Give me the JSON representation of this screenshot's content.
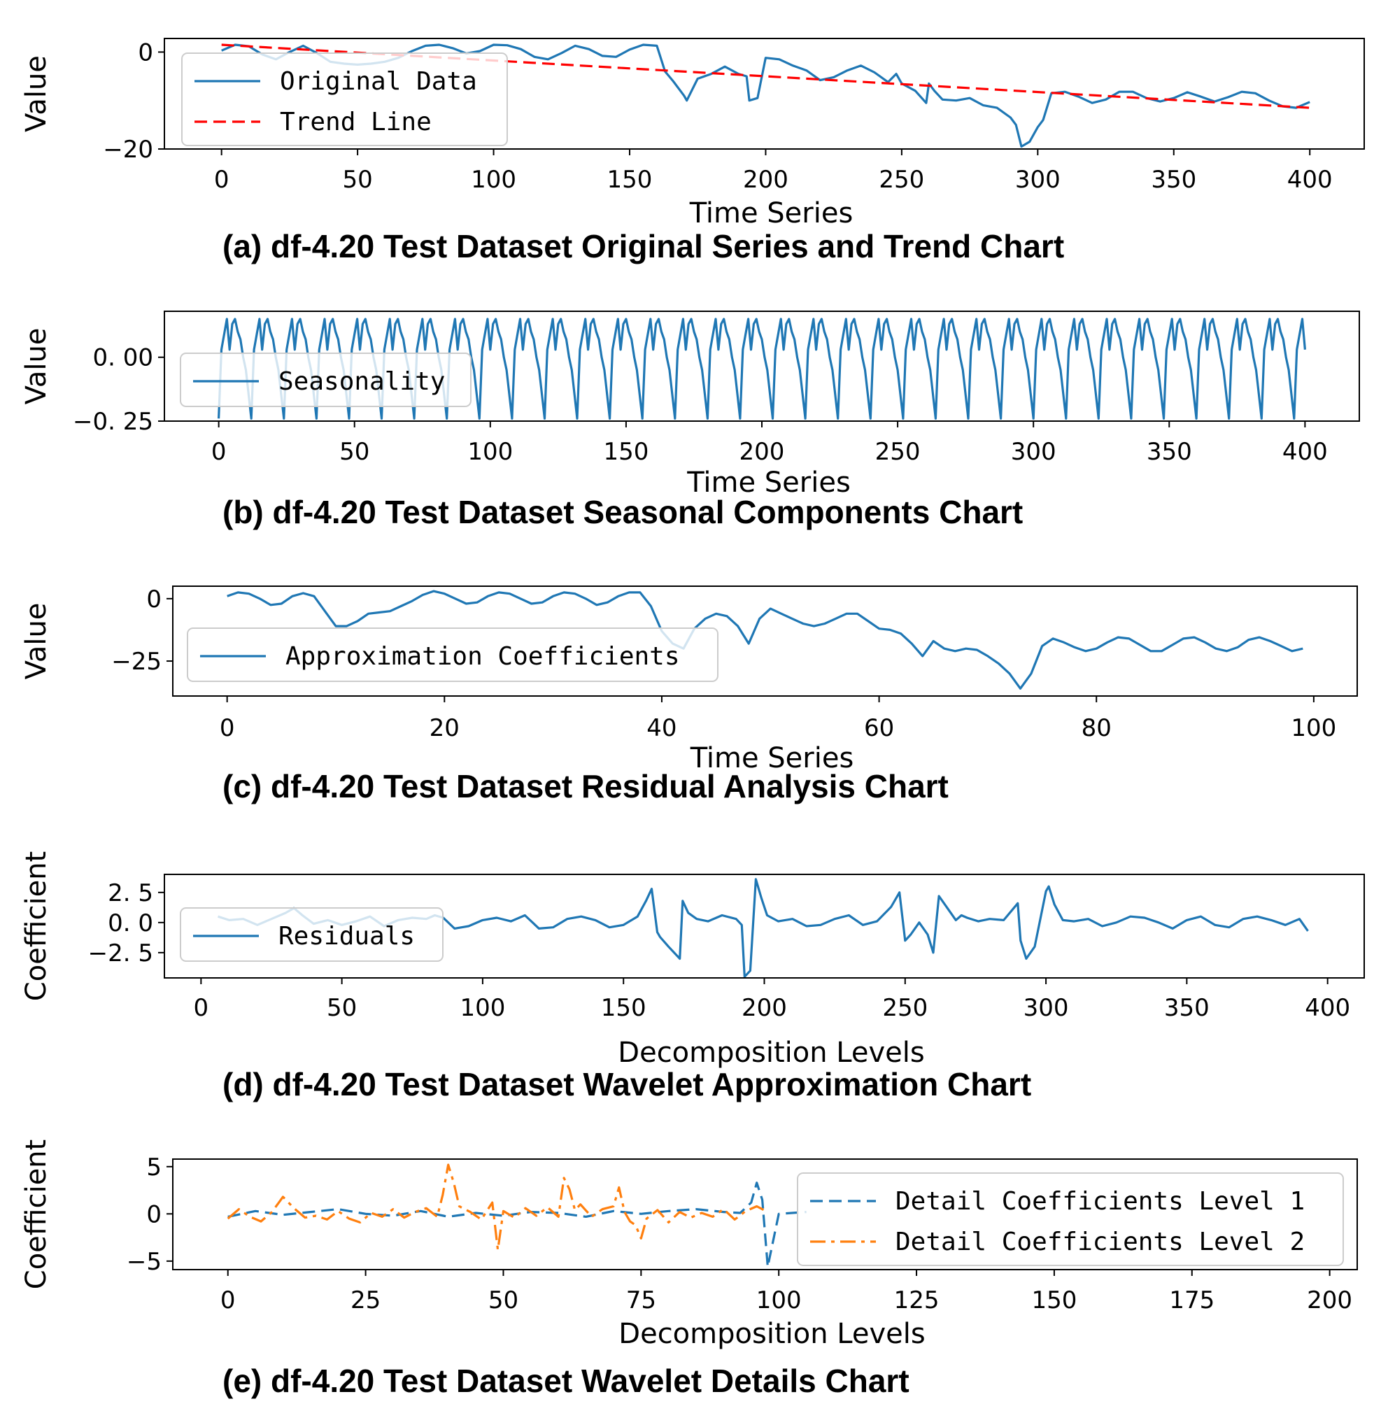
{
  "colors": {
    "blue": "#1f77b4",
    "red": "#ff0000",
    "orange": "#ff7f0e"
  },
  "chart_data": [
    {
      "id": "a",
      "type": "line",
      "caption": "(a)  df-4.20 Test Dataset Original Series and Trend Chart",
      "xlabel": "Time Series",
      "ylabel": "Value",
      "xlim": [
        -21,
        420
      ],
      "ylim": [
        -20,
        2.8
      ],
      "xticks": [
        0,
        50,
        100,
        150,
        200,
        250,
        300,
        350,
        400
      ],
      "yticks": [
        {
          "v": 0,
          "label": "0"
        },
        {
          "v": -20,
          "label": "−20"
        }
      ],
      "legend": "top-left",
      "series": [
        {
          "name": "Original Data",
          "style": "solid",
          "color": "#1f77b4",
          "x": [
            0,
            5,
            10,
            15,
            20,
            25,
            30,
            35,
            40,
            45,
            50,
            55,
            60,
            65,
            70,
            75,
            80,
            85,
            90,
            95,
            100,
            105,
            110,
            115,
            120,
            125,
            130,
            135,
            140,
            145,
            150,
            155,
            160,
            163,
            166,
            170,
            171,
            175,
            180,
            185,
            190,
            193,
            194,
            197,
            200,
            205,
            210,
            215,
            220,
            225,
            230,
            235,
            240,
            245,
            248,
            250,
            255,
            259,
            260,
            262,
            265,
            270,
            275,
            280,
            285,
            290,
            292,
            294,
            297,
            300,
            302,
            305,
            310,
            315,
            320,
            325,
            330,
            335,
            340,
            345,
            350,
            355,
            360,
            365,
            370,
            375,
            380,
            385,
            390,
            395,
            400
          ],
          "y": [
            0.3,
            1.5,
            1.2,
            -0.5,
            -1.5,
            0,
            1.3,
            -0.2,
            -2,
            -2.4,
            -2.6,
            -2.4,
            -2,
            -1.2,
            0.2,
            1.3,
            1.5,
            0.8,
            -0.3,
            0.2,
            1.5,
            1.4,
            0.6,
            -1.0,
            -1.5,
            -0.2,
            1.3,
            0.6,
            -0.8,
            -1,
            0.5,
            1.5,
            1.3,
            -4,
            -6,
            -9,
            -10,
            -5.5,
            -4.5,
            -3,
            -4.5,
            -5,
            -10,
            -9.5,
            -1.2,
            -1.5,
            -2.8,
            -3.8,
            -5.8,
            -5.2,
            -3.8,
            -2.8,
            -4.2,
            -6.2,
            -4.5,
            -6.5,
            -8,
            -10.5,
            -6.5,
            -8,
            -9.8,
            -10,
            -9.5,
            -11,
            -11.5,
            -13.5,
            -15,
            -19.5,
            -18.5,
            -15.5,
            -14,
            -8.5,
            -8.2,
            -9.2,
            -10.5,
            -9.8,
            -8.2,
            -8.2,
            -9.5,
            -10.2,
            -9.5,
            -8.3,
            -9.2,
            -10.2,
            -9.3,
            -8.2,
            -8.5,
            -10,
            -11.2,
            -11.5,
            -10.3
          ]
        },
        {
          "name": "Trend Line",
          "style": "dashed",
          "color": "#ff0000",
          "x": [
            0,
            400
          ],
          "y": [
            1.5,
            -11.5
          ]
        }
      ]
    },
    {
      "id": "b",
      "type": "line",
      "caption": "(b)  df-4.20 Test Dataset Seasonal Components Chart",
      "xlabel": "Time Series",
      "ylabel": "Value",
      "xlim": [
        -20,
        420
      ],
      "ylim": [
        -0.25,
        0.18
      ],
      "xticks": [
        0,
        50,
        100,
        150,
        200,
        250,
        300,
        350,
        400
      ],
      "yticks": [
        {
          "v": 0,
          "label": "0. 00"
        },
        {
          "v": -0.25,
          "label": "−0. 25"
        }
      ],
      "legend": "left",
      "season_period": 12,
      "season_shape": {
        "x": [
          0,
          1,
          3,
          4,
          5,
          6,
          7,
          8,
          9,
          10,
          12
        ],
        "y": [
          -0.24,
          0.03,
          0.15,
          0.03,
          0.13,
          0.15,
          0.1,
          0.07,
          0.0,
          -0.05,
          -0.24
        ]
      },
      "series": [
        {
          "name": "Seasonality",
          "style": "solid",
          "color": "#1f77b4",
          "x_range": [
            0,
            400
          ]
        }
      ]
    },
    {
      "id": "c",
      "type": "line",
      "caption": "(c)  df-4.20 Test Dataset Residual Analysis Chart",
      "xlabel": "Time Series",
      "ylabel": "Value",
      "xlim": [
        -5,
        104
      ],
      "ylim": [
        -39,
        5
      ],
      "xticks": [
        0,
        20,
        40,
        60,
        80,
        100
      ],
      "yticks": [
        {
          "v": 0,
          "label": "0"
        },
        {
          "v": -25,
          "label": "−25"
        }
      ],
      "legend": "left",
      "series": [
        {
          "name": "Approximation Coefficients",
          "style": "solid",
          "color": "#1f77b4",
          "x": [
            0,
            1,
            2,
            3,
            4,
            5,
            6,
            7,
            8,
            9,
            10,
            11,
            12,
            13,
            14,
            15,
            16,
            17,
            18,
            19,
            20,
            21,
            22,
            23,
            24,
            25,
            26,
            27,
            28,
            29,
            30,
            31,
            32,
            33,
            34,
            35,
            36,
            37,
            38,
            39,
            40,
            41,
            42,
            43,
            44,
            45,
            46,
            47,
            48,
            49,
            50,
            51,
            52,
            53,
            54,
            55,
            56,
            57,
            58,
            59,
            60,
            61,
            62,
            63,
            64,
            65,
            66,
            67,
            68,
            69,
            70,
            71,
            72,
            73,
            74,
            75,
            76,
            77,
            78,
            79,
            80,
            81,
            82,
            83,
            84,
            85,
            86,
            87,
            88,
            89,
            90,
            91,
            92,
            93,
            94,
            95,
            96,
            97,
            98,
            99
          ],
          "y": [
            1,
            2.5,
            2,
            0,
            -2.5,
            -2,
            1,
            2.2,
            1,
            -5,
            -11,
            -11,
            -9,
            -6,
            -5.5,
            -5,
            -3,
            -1,
            1.5,
            3,
            2,
            0,
            -2,
            -1.5,
            1,
            2.5,
            2,
            0,
            -2,
            -1.5,
            1,
            2.5,
            2,
            0,
            -2.5,
            -1.5,
            1,
            2.5,
            2.5,
            -3,
            -13,
            -18,
            -20,
            -12,
            -8,
            -6,
            -7,
            -11,
            -18,
            -8,
            -4,
            -6,
            -8,
            -10,
            -11,
            -10,
            -8,
            -6,
            -6,
            -9,
            -12,
            -12.5,
            -14,
            -18,
            -23,
            -17,
            -20,
            -21,
            -20,
            -20.5,
            -23,
            -26,
            -30,
            -36,
            -30,
            -19,
            -16,
            -17.5,
            -19.5,
            -21,
            -20,
            -17.5,
            -15.5,
            -16,
            -18.5,
            -21,
            -21,
            -18.5,
            -16,
            -15.5,
            -17.5,
            -20,
            -21,
            -19.5,
            -16.5,
            -15.5,
            -17,
            -19,
            -21,
            -20
          ]
        }
      ]
    },
    {
      "id": "d",
      "type": "line",
      "caption": "(d)  df-4.20 Test Dataset Wavelet Approximation Chart",
      "xlabel": "Decomposition Levels",
      "ylabel": "Coefficient",
      "xlim": [
        -13,
        413
      ],
      "ylim": [
        -4.6,
        4
      ],
      "xticks": [
        0,
        50,
        100,
        150,
        200,
        250,
        300,
        350,
        400
      ],
      "yticks": [
        {
          "v": 2.5,
          "label": "2. 5"
        },
        {
          "v": 0,
          "label": "0. 0"
        },
        {
          "v": -2.5,
          "label": "−2. 5"
        }
      ],
      "legend": "left",
      "series": [
        {
          "name": "Residuals",
          "style": "solid",
          "color": "#1f77b4",
          "x": [
            6,
            10,
            15,
            20,
            25,
            30,
            33,
            36,
            40,
            45,
            50,
            55,
            60,
            65,
            70,
            75,
            80,
            83,
            86,
            90,
            95,
            100,
            105,
            110,
            115,
            120,
            125,
            130,
            135,
            140,
            145,
            150,
            155,
            158,
            160,
            162,
            163,
            166,
            170,
            171,
            173,
            176,
            180,
            185,
            190,
            192,
            193,
            195,
            197,
            199,
            201,
            205,
            210,
            215,
            220,
            225,
            230,
            235,
            240,
            245,
            248,
            250,
            252,
            255,
            258,
            260,
            262,
            265,
            268,
            270,
            272,
            276,
            280,
            285,
            290,
            291,
            293,
            296,
            300,
            301,
            303,
            306,
            310,
            315,
            320,
            325,
            330,
            335,
            340,
            345,
            350,
            355,
            360,
            365,
            370,
            375,
            380,
            385,
            390,
            393
          ],
          "y": [
            0.5,
            0.2,
            0.3,
            -0.2,
            0.3,
            0.8,
            1.2,
            0.6,
            -0.1,
            0.2,
            -0.2,
            0.1,
            0.5,
            -0.3,
            0.2,
            0.4,
            0.3,
            0.6,
            0.4,
            -0.5,
            -0.3,
            0.2,
            0.4,
            0.1,
            0.6,
            -0.5,
            -0.4,
            0.3,
            0.5,
            0.2,
            -0.4,
            -0.2,
            0.5,
            1.8,
            2.8,
            -0.8,
            -1.2,
            -2.0,
            -3.0,
            1.8,
            0.8,
            0.3,
            0.1,
            0.6,
            0.3,
            -0.2,
            -4.5,
            -4.0,
            3.6,
            2.0,
            0.6,
            0.1,
            0.3,
            -0.3,
            -0.2,
            0.3,
            0.6,
            -0.2,
            0.1,
            1.3,
            2.5,
            -1.5,
            -1.0,
            0.0,
            -1.0,
            -2.5,
            2.2,
            1.2,
            0.2,
            0.6,
            0.4,
            0.1,
            0.3,
            0.2,
            1.6,
            -1.5,
            -3.0,
            -2.0,
            2.6,
            3.0,
            1.5,
            0.2,
            0.1,
            0.3,
            -0.3,
            0.0,
            0.5,
            0.4,
            0.0,
            -0.5,
            0.2,
            0.5,
            -0.2,
            -0.4,
            0.3,
            0.5,
            0.2,
            -0.2,
            0.3,
            -0.7
          ]
        }
      ]
    },
    {
      "id": "e",
      "type": "line",
      "caption": "(e)  df-4.20 Test Dataset Wavelet Details Chart",
      "xlabel": "Decomposition Levels",
      "ylabel": "Coefficient",
      "xlim": [
        -10,
        205
      ],
      "ylim": [
        -5.9,
        5.8
      ],
      "xticks": [
        0,
        25,
        50,
        75,
        100,
        125,
        150,
        175,
        200
      ],
      "yticks": [
        {
          "v": 5,
          "label": "5"
        },
        {
          "v": 0,
          "label": "0"
        },
        {
          "v": -5,
          "label": "−5"
        }
      ],
      "legend": "top-right",
      "series": [
        {
          "name": "Detail Coefficients Level 1",
          "style": "dashed",
          "color": "#1f77b4",
          "x": [
            0,
            5,
            10,
            15,
            20,
            25,
            30,
            35,
            40,
            45,
            50,
            55,
            60,
            65,
            70,
            75,
            80,
            85,
            90,
            93,
            95,
            96,
            97,
            98,
            100,
            105,
            110,
            115,
            120,
            125,
            130,
            135,
            140,
            144,
            145,
            146,
            149,
            150,
            151,
            155,
            160,
            165,
            170,
            175,
            180,
            185,
            190,
            195,
            199
          ],
          "y": [
            -0.3,
            0.3,
            -0.1,
            0.2,
            0.5,
            0.0,
            -0.2,
            0.3,
            -0.3,
            0.1,
            -0.2,
            0.2,
            0.1,
            -0.3,
            0.3,
            0.0,
            0.3,
            0.5,
            0.2,
            0.1,
            1.2,
            3.3,
            1.5,
            -5.6,
            0.0,
            0.2,
            0.3,
            -0.1,
            0.2,
            0.3,
            0.0,
            0.1,
            0.2,
            0.1,
            2.8,
            0.5,
            -0.5,
            -2.9,
            0.2,
            0.1,
            0.3,
            0.0,
            0.2,
            -0.1,
            0.3,
            0.0,
            0.2,
            0.1,
            -0.3
          ],
          "x_visible_max": 105
        },
        {
          "name": "Detail Coefficients Level 2",
          "style": "dashdot",
          "color": "#ff7f0e",
          "x": [
            0,
            2,
            4,
            6,
            8,
            10,
            12,
            14,
            16,
            18,
            20,
            22,
            24,
            26,
            28,
            30,
            32,
            34,
            36,
            38,
            39,
            40,
            41,
            42,
            44,
            46,
            48,
            49,
            50,
            52,
            54,
            56,
            58,
            60,
            61,
            62,
            63,
            64,
            66,
            68,
            70,
            71,
            72,
            73,
            74,
            75,
            76,
            78,
            80,
            82,
            84,
            86,
            88,
            90,
            92,
            94,
            96,
            98
          ],
          "y": [
            -0.5,
            0.5,
            -0.3,
            -0.8,
            0.2,
            1.8,
            0.6,
            -0.4,
            -0.2,
            -0.6,
            0.3,
            -0.5,
            -0.9,
            0.1,
            -0.3,
            0.5,
            -0.4,
            0.2,
            0.6,
            -0.3,
            2.0,
            5.2,
            3.3,
            0.8,
            0.2,
            -0.6,
            1.2,
            -3.8,
            0.3,
            -0.4,
            0.6,
            -0.2,
            0.7,
            -0.3,
            3.8,
            2.6,
            0.4,
            1.0,
            -0.3,
            0.5,
            0.8,
            2.8,
            0.2,
            -0.8,
            -1.2,
            -2.6,
            -0.5,
            0.4,
            -0.9,
            0.2,
            -0.4,
            0.1,
            -0.3,
            0.5,
            -0.6,
            0.3,
            0.8,
            0.2
          ]
        }
      ]
    }
  ]
}
